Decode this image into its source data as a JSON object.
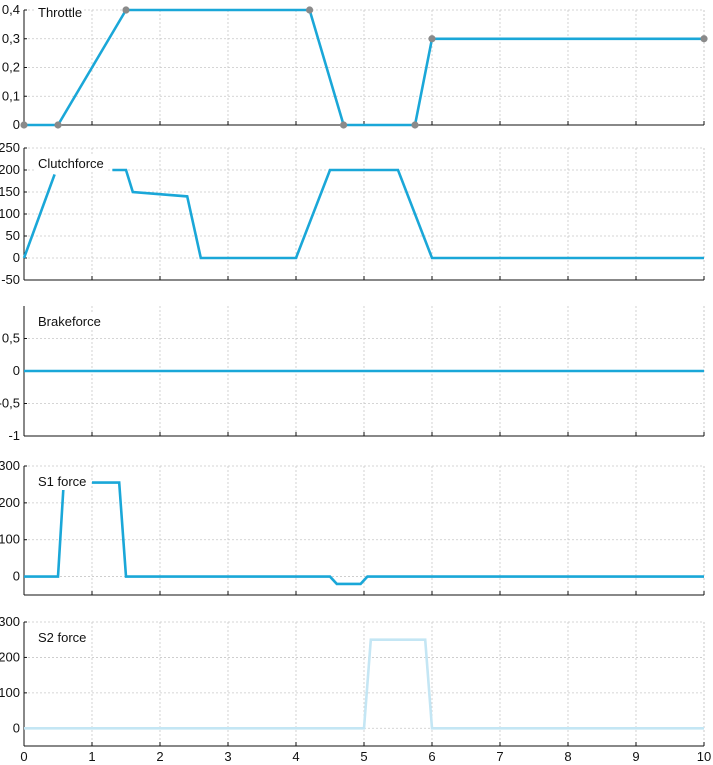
{
  "chart_data": {
    "type": "line",
    "x_axis": {
      "ticks": [
        "0",
        "1",
        "2",
        "3",
        "4",
        "5",
        "6",
        "7",
        "8",
        "9",
        "10"
      ],
      "xlim": [
        0,
        10
      ]
    },
    "grid": true,
    "series_color": "#1aa7d8",
    "marker_color": "#8a8a8a",
    "light_color": "#c4e6f4",
    "panels": [
      {
        "title": "Throttle",
        "ylim": [
          0,
          0.4
        ],
        "ytick_values": [
          0,
          0.1,
          0.2,
          0.3,
          0.4
        ],
        "ytick_labels": [
          "0",
          "0,1",
          "0,2",
          "0,3",
          "0,4"
        ],
        "color": "#1aa7d8",
        "markers": true,
        "segments": [
          {
            "x": [
              0,
              0.5,
              1.5,
              4.2,
              4.7,
              5.75,
              6.0,
              10
            ],
            "y": [
              0,
              0,
              0.4,
              0.4,
              0,
              0,
              0.3,
              0.3
            ]
          }
        ]
      },
      {
        "title": "Clutchforce",
        "ylim": [
          -50,
          250
        ],
        "ytick_values": [
          -50,
          0,
          50,
          100,
          150,
          200,
          250
        ],
        "ytick_labels": [
          "-50",
          "0",
          "50",
          "100",
          "150",
          "200",
          "250"
        ],
        "color": "#1aa7d8",
        "markers": false,
        "segments": [
          {
            "x": [
              0,
              0.45
            ],
            "y": [
              0,
              190
            ]
          },
          {
            "x": [
              1.3,
              1.5,
              1.6,
              2.4,
              2.6,
              4.0,
              4.5,
              5.5,
              6.0,
              10
            ],
            "y": [
              200,
              200,
              150,
              140,
              0,
              0,
              200,
              200,
              0,
              0
            ]
          }
        ]
      },
      {
        "title": "Brakeforce",
        "ylim": [
          -1,
          1
        ],
        "ytick_values": [
          -1,
          -0.5,
          0,
          0.5
        ],
        "ytick_labels": [
          "-1",
          "-0,5",
          "0",
          "0,5"
        ],
        "color": "#1aa7d8",
        "markers": false,
        "segments": [
          {
            "x": [
              0,
              10
            ],
            "y": [
              0,
              0
            ]
          }
        ]
      },
      {
        "title": "S1 force",
        "ylim": [
          -50,
          300
        ],
        "ytick_values": [
          0,
          100,
          200,
          300
        ],
        "ytick_labels": [
          "0",
          "100",
          "200",
          "300"
        ],
        "color": "#1aa7d8",
        "markers": false,
        "segments": [
          {
            "x": [
              0,
              0.5,
              0.58
            ],
            "y": [
              0,
              0,
              240
            ]
          },
          {
            "x": [
              1.0,
              1.4,
              1.5,
              4.5,
              4.6,
              4.95,
              5.05,
              10
            ],
            "y": [
              255,
              255,
              0,
              0,
              -20,
              -20,
              0,
              0
            ]
          }
        ]
      },
      {
        "title": "S2 force",
        "ylim": [
          -50,
          300
        ],
        "ytick_values": [
          0,
          100,
          200,
          300
        ],
        "ytick_labels": [
          "0",
          "100",
          "200",
          "300"
        ],
        "color": "#c4e6f4",
        "markers": false,
        "segments": [
          {
            "x": [
              0,
              5.0,
              5.1,
              5.9,
              6.0,
              10
            ],
            "y": [
              0,
              0,
              250,
              250,
              0,
              0
            ]
          }
        ]
      }
    ]
  }
}
